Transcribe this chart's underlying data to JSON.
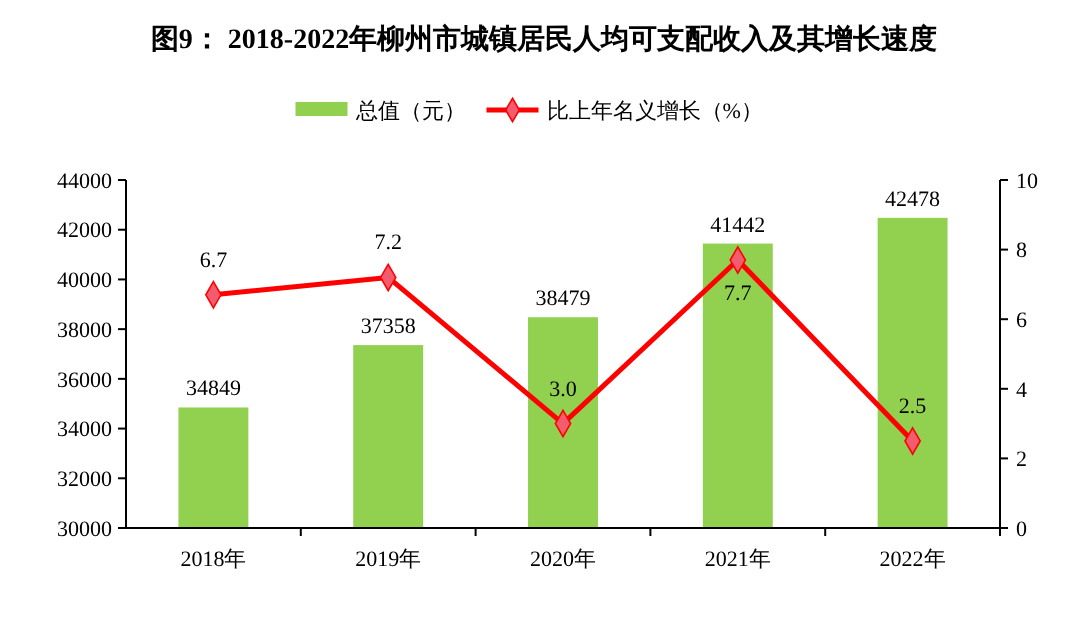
{
  "chart_data": {
    "type": "bar",
    "title": "图9：  2018-2022年柳州市城镇居民人均可支配收入及其增长速度",
    "categories": [
      "2018年",
      "2019年",
      "2020年",
      "2021年",
      "2022年"
    ],
    "series": [
      {
        "name": "总值（元）",
        "color": "#92d050",
        "values": [
          34849,
          37358,
          38479,
          41442,
          42478
        ]
      },
      {
        "name": "比上年名义增长（%）",
        "type": "line",
        "axis": "y2",
        "color": "#ff0000",
        "marker": "diamond",
        "values": [
          6.7,
          7.2,
          3.0,
          7.7,
          2.5
        ],
        "value_labels": [
          "6.7",
          "7.2",
          "3.0",
          "7.7",
          "2.5"
        ]
      }
    ],
    "ylim": [
      30000,
      44000
    ],
    "yticks": [
      30000,
      32000,
      34000,
      36000,
      38000,
      40000,
      42000,
      44000
    ],
    "y2lim": [
      0,
      10
    ],
    "y2ticks": [
      0,
      2,
      4,
      6,
      8,
      10
    ],
    "data_labels": true,
    "legend": "top",
    "grid": false
  }
}
